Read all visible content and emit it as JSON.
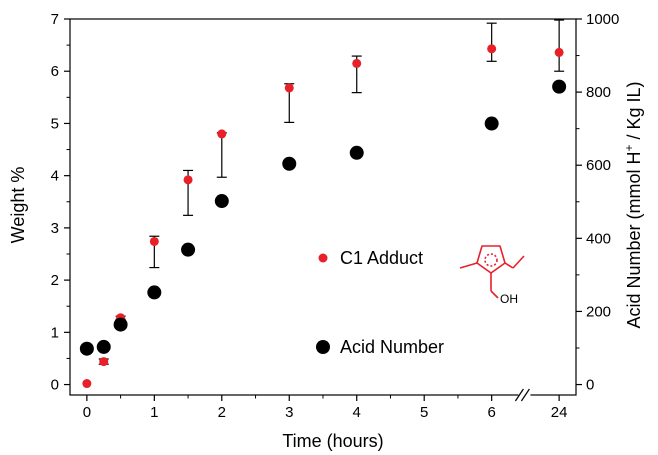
{
  "chart_data": {
    "type": "scatter",
    "title": "",
    "xlabel": "Time (hours)",
    "ylabel_left": "Weight %",
    "ylabel_right_parts": {
      "main": "Acid Number (mmol H",
      "sup": "+",
      "tail": " / Kg IL)"
    },
    "x_ticks": [
      "0",
      "1",
      "2",
      "3",
      "4",
      "5",
      "6",
      "24"
    ],
    "x_tick_positions": [
      0,
      1,
      2,
      3,
      4,
      5,
      6,
      7
    ],
    "x_minor_ticks": [
      0.5,
      1.5,
      2.5,
      3.5,
      4.5,
      5.5,
      6.5
    ],
    "x_break_between": [
      6,
      24
    ],
    "xlim": [
      -0.25,
      7.25
    ],
    "y_left_lim": [
      -0.2,
      7
    ],
    "y_left_ticks": [
      "0",
      "1",
      "2",
      "3",
      "4",
      "5",
      "6",
      "7"
    ],
    "y_right_lim": [
      -28.6,
      1000
    ],
    "y_right_ticks": [
      "0",
      "200",
      "400",
      "600",
      "800",
      "1000"
    ],
    "grid": false,
    "legend_placement": "center-right",
    "series": [
      {
        "name": "C1 Adduct",
        "axis": "left",
        "color": "#e8202a",
        "marker_radius": 4.5,
        "x": [
          0,
          0.25,
          0.5,
          1,
          1.5,
          2,
          3,
          4,
          6,
          7
        ],
        "y": [
          0.02,
          0.44,
          1.28,
          2.74,
          3.92,
          4.8,
          5.68,
          6.15,
          6.43,
          6.36
        ],
        "err_lower": [
          0,
          0.05,
          0.03,
          0.5,
          0.68,
          0.83,
          0.66,
          0.56,
          0.24,
          0.36
        ],
        "err_upper": [
          0,
          0.05,
          0.03,
          0.1,
          0.18,
          0.02,
          0.08,
          0.14,
          0.49,
          0.62
        ]
      },
      {
        "name": "Acid Number",
        "axis": "right",
        "color": "#000000",
        "marker_radius": 7,
        "x": [
          0,
          0.25,
          0.5,
          1,
          1.5,
          2,
          3,
          4,
          6,
          7
        ],
        "y": [
          98,
          103,
          164,
          252,
          369,
          502,
          604,
          634,
          714,
          815
        ]
      }
    ],
    "structure_icon": {
      "name": "imidazolium-hydroxymethyl-icon",
      "color": "#e8202a",
      "substituent_label": "OH"
    }
  }
}
